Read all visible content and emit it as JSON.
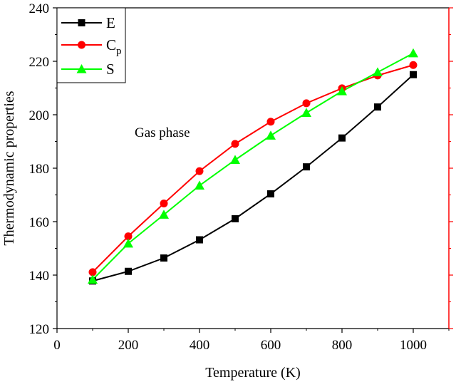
{
  "chart_data": {
    "type": "line",
    "xlabel": "Temperature (K)",
    "ylabel": "Thermodynamic properties",
    "xlim": [
      0,
      1100
    ],
    "ylim": [
      120,
      240
    ],
    "xticks": [
      0,
      200,
      400,
      600,
      800,
      1000
    ],
    "yticks": [
      120,
      140,
      160,
      180,
      200,
      220,
      240
    ],
    "grid": false,
    "legend_position": "top-left",
    "annotation": "Gas phase",
    "right_axis_color": "#ff0000",
    "series": [
      {
        "name": "E",
        "color": "#000000",
        "marker": "square",
        "x": [
          100,
          200,
          300,
          400,
          500,
          600,
          700,
          800,
          900,
          1000
        ],
        "values": [
          137.8,
          141.4,
          146.4,
          153.2,
          161.1,
          170.4,
          180.5,
          191.3,
          202.9,
          215.0
        ]
      },
      {
        "name": "C",
        "name_sub": "p",
        "color": "#ff0000",
        "marker": "circle",
        "x": [
          100,
          200,
          300,
          400,
          500,
          600,
          700,
          800,
          900,
          1000
        ],
        "values": [
          141.1,
          154.5,
          166.8,
          178.9,
          189.1,
          197.4,
          204.3,
          209.9,
          214.7,
          218.6
        ]
      },
      {
        "name": "S",
        "color": "#00ff00",
        "marker": "triangle",
        "x": [
          100,
          200,
          300,
          400,
          500,
          600,
          700,
          800,
          900,
          1000
        ],
        "values": [
          138.3,
          151.8,
          162.6,
          173.5,
          183.1,
          192.2,
          200.7,
          208.8,
          215.9,
          223.0
        ]
      }
    ]
  }
}
